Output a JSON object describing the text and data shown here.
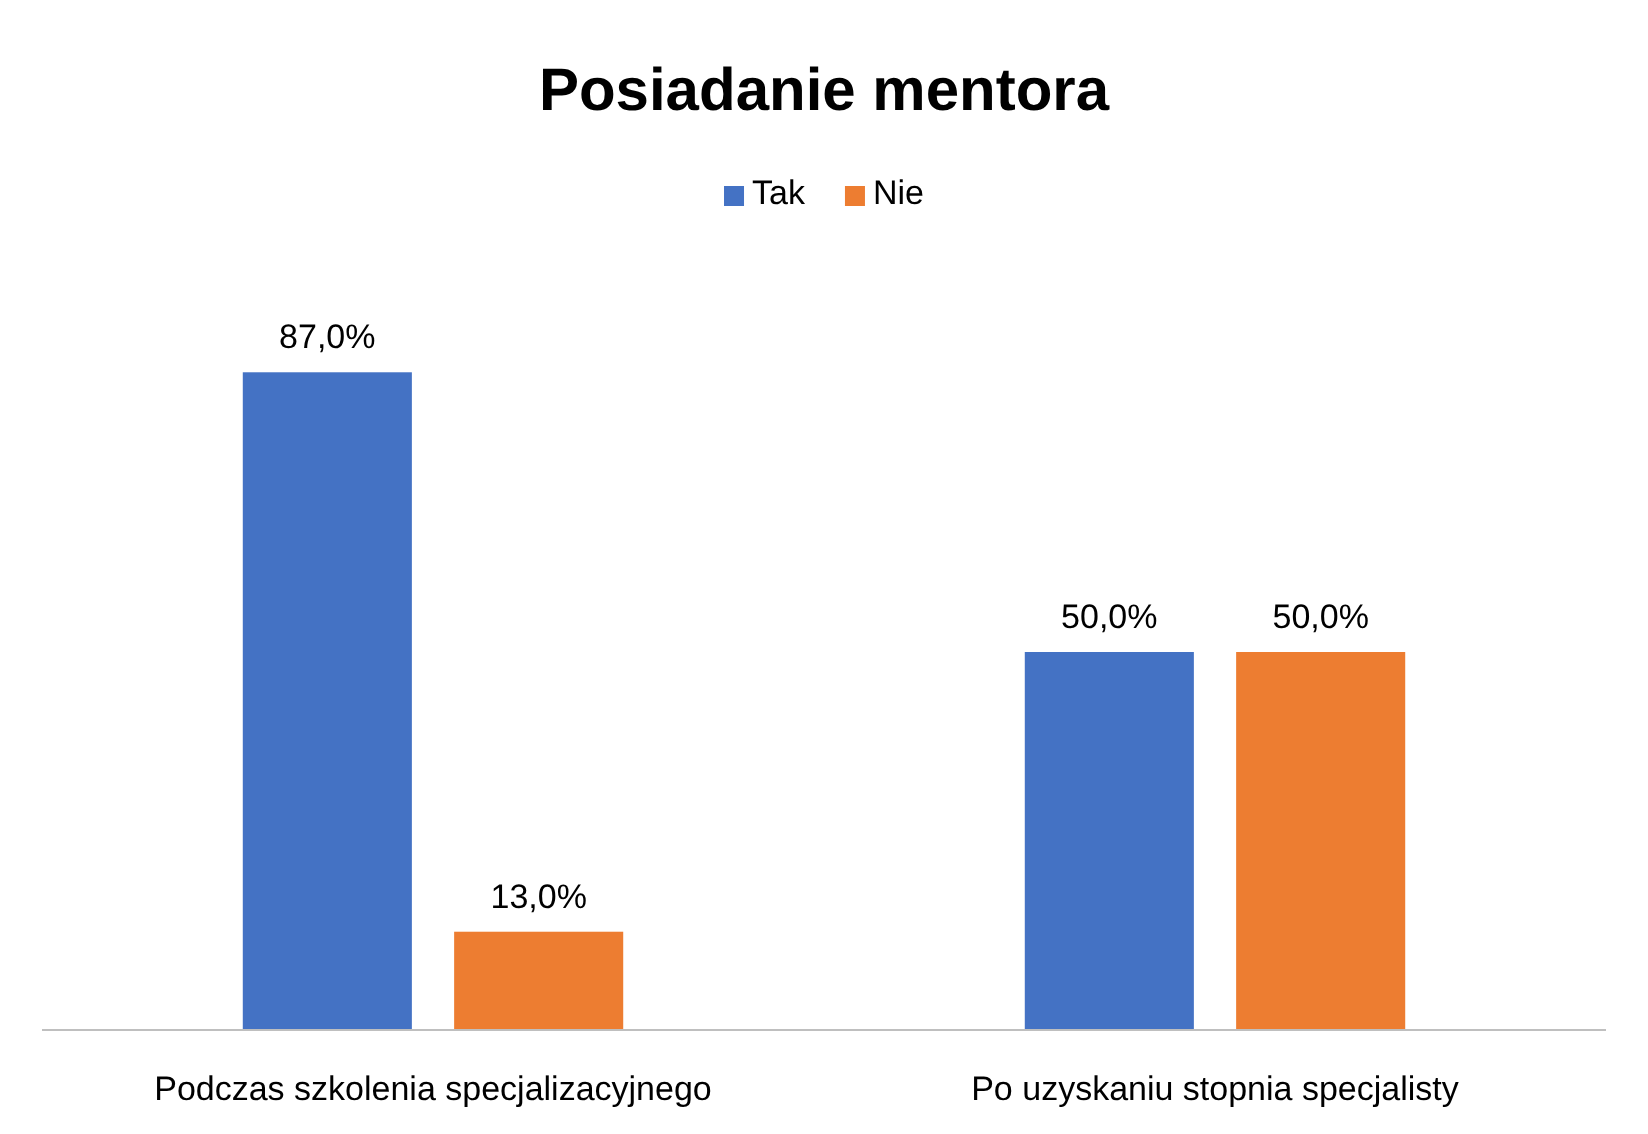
{
  "chart_data": {
    "type": "bar",
    "title": "Posiadanie mentora",
    "categories": [
      "Podczas szkolenia specjalizacyjnego",
      "Po uzyskaniu stopnia specjalisty"
    ],
    "series": [
      {
        "name": "Tak",
        "color": "#4472c4",
        "values": [
          87,
          50
        ],
        "value_labels": [
          "87,0%",
          "50,0%"
        ]
      },
      {
        "name": "Nie",
        "color": "#ed7d31",
        "values": [
          13,
          50
        ],
        "value_labels": [
          "13,0%",
          "50,0%"
        ]
      }
    ],
    "legend": "top"
  }
}
